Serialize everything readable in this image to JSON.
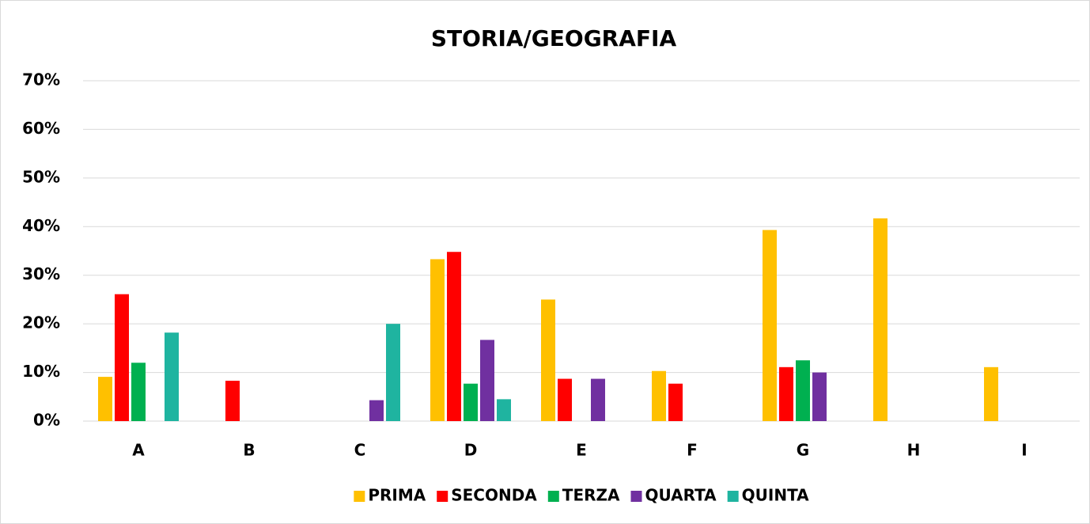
{
  "chart_data": {
    "type": "bar",
    "title": "STORIA/GEOGRAFIA",
    "categories": [
      "A",
      "B",
      "C",
      "D",
      "E",
      "F",
      "G",
      "H",
      "I"
    ],
    "series": [
      {
        "name": "PRIMA",
        "color": "#ffc000",
        "values": [
          9.1,
          0,
          0,
          33.3,
          25,
          10.3,
          39.3,
          41.7,
          11.1
        ]
      },
      {
        "name": "SECONDA",
        "color": "#ff0000",
        "values": [
          26.1,
          8.3,
          0,
          34.8,
          8.7,
          7.7,
          11.1,
          0,
          0
        ]
      },
      {
        "name": "TERZA",
        "color": "#00b050",
        "values": [
          12,
          0,
          0,
          7.7,
          0,
          0,
          12.5,
          0,
          0
        ]
      },
      {
        "name": "QUARTA",
        "color": "#7030a0",
        "values": [
          0,
          0,
          4.3,
          16.7,
          8.7,
          0,
          10,
          0,
          0
        ]
      },
      {
        "name": "QUINTA",
        "color": "#1fb4a0",
        "values": [
          18.2,
          0,
          20,
          4.5,
          0,
          0,
          0,
          0,
          0
        ]
      }
    ],
    "ylim": [
      0,
      70
    ],
    "yticks": [
      {
        "value": 0,
        "label": "0%"
      },
      {
        "value": 10,
        "label": "10%"
      },
      {
        "value": 20,
        "label": "20%"
      },
      {
        "value": 30,
        "label": "30%"
      },
      {
        "value": 40,
        "label": "40%"
      },
      {
        "value": 50,
        "label": "50%"
      },
      {
        "value": 60,
        "label": "60%"
      },
      {
        "value": 70,
        "label": "70%"
      }
    ],
    "grid": true,
    "legend": "bottom"
  }
}
